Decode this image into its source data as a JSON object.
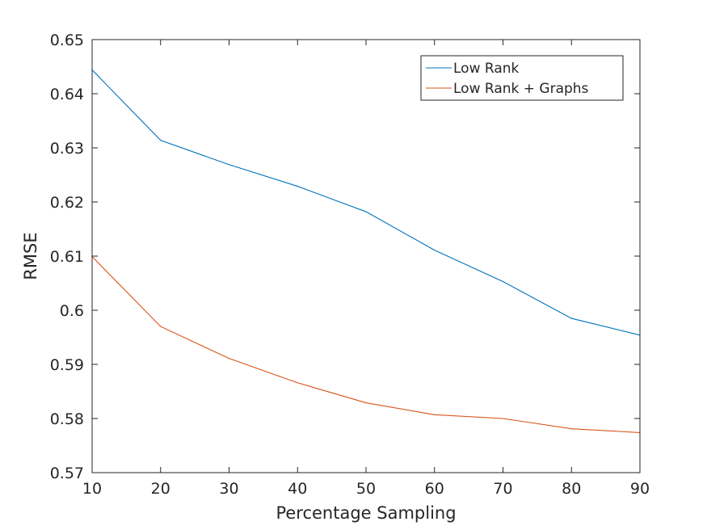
{
  "chart_data": {
    "type": "line",
    "title": "",
    "xlabel": "Percentage Sampling",
    "ylabel": "RMSE",
    "xlim": [
      10,
      90
    ],
    "ylim": [
      0.57,
      0.65
    ],
    "xticks": [
      10,
      20,
      30,
      40,
      50,
      60,
      70,
      80,
      90
    ],
    "xtick_labels": [
      "10",
      "20",
      "30",
      "40",
      "50",
      "60",
      "70",
      "80",
      "90"
    ],
    "yticks": [
      0.57,
      0.58,
      0.59,
      0.6,
      0.61,
      0.62,
      0.63,
      0.64,
      0.65
    ],
    "ytick_labels": [
      "0.57",
      "0.58",
      "0.59",
      "0.6",
      "0.61",
      "0.62",
      "0.63",
      "0.64",
      "0.65"
    ],
    "grid": false,
    "legend_position": "top-right",
    "x": [
      10,
      20,
      30,
      40,
      50,
      60,
      70,
      80,
      90
    ],
    "series": [
      {
        "name": "Low Rank",
        "color": "#0072BD",
        "values": [
          0.6444,
          0.6314,
          0.6269,
          0.6229,
          0.6182,
          0.6111,
          0.6053,
          0.5985,
          0.5954
        ]
      },
      {
        "name": "Low Rank + Graphs",
        "color": "#D95319",
        "values": [
          0.6099,
          0.597,
          0.5911,
          0.5866,
          0.5829,
          0.5807,
          0.58,
          0.5781,
          0.5774
        ]
      }
    ]
  }
}
